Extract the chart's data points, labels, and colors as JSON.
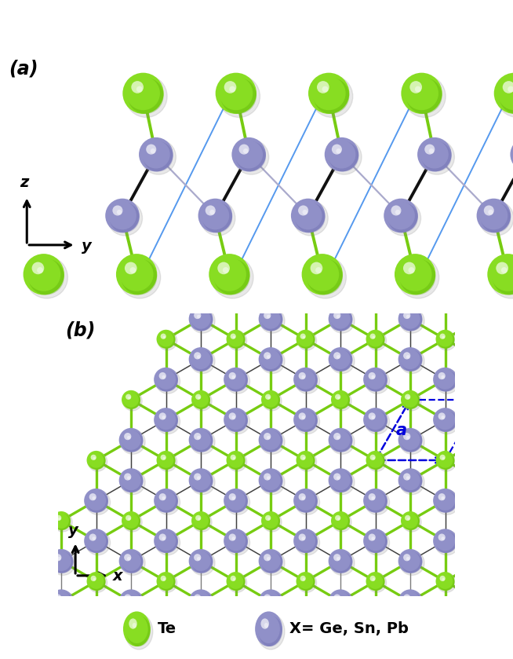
{
  "fig_width": 6.54,
  "fig_height": 8.39,
  "dpi": 100,
  "te_color": "#88dd22",
  "te_edge": "#55aa00",
  "x_color": "#9090C8",
  "x_edge": "#6666aa",
  "bond_green": "#77cc11",
  "bond_dark": "#111111",
  "bond_light": "#aaaacc",
  "blue_line": "#5599ee",
  "unit_cell_color": "#0000dd",
  "bg_color": "#ffffff",
  "panel_a_label": "(a)",
  "panel_b_label": "(b)",
  "axis_z": "z",
  "axis_y_a": "y",
  "axis_y_b": "y",
  "axis_x": "x",
  "legend_te": "Te",
  "legend_x": "X= Ge, Sn, Pb",
  "unit_cell_label": "a"
}
